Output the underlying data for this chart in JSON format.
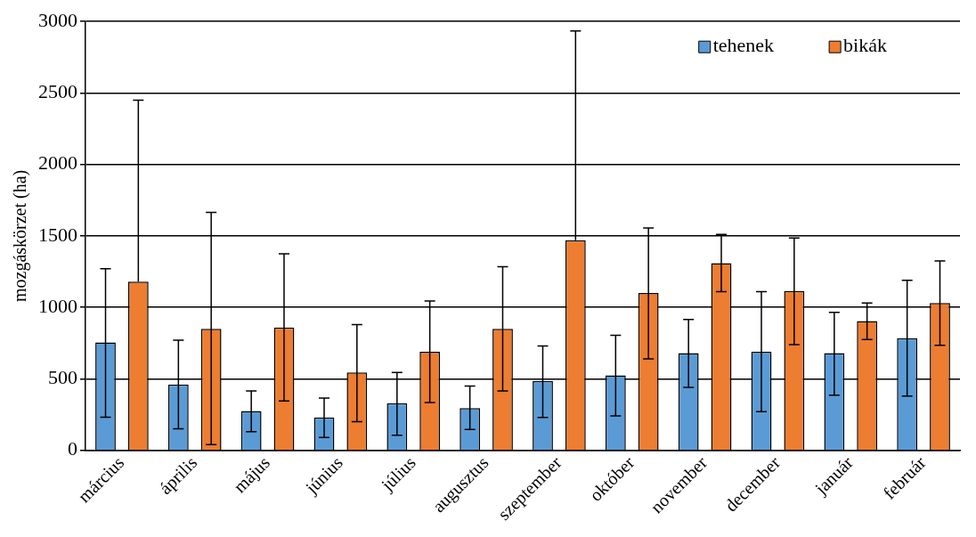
{
  "chart_data": {
    "type": "bar",
    "ylabel": "mozgáskörzet (ha)",
    "categories": [
      "március",
      "április",
      "május",
      "június",
      "július",
      "augusztus",
      "szeptember",
      "október",
      "november",
      "december",
      "január",
      "február"
    ],
    "series": [
      {
        "name": "tehenek",
        "color": "#5b9bd5",
        "values": [
          755,
          460,
          275,
          230,
          330,
          295,
          485,
          525,
          680,
          690,
          680,
          785
        ],
        "errors": [
          [
            232,
            1270
          ],
          [
            150,
            770
          ],
          [
            130,
            415
          ],
          [
            90,
            365
          ],
          [
            105,
            545
          ],
          [
            145,
            450
          ],
          [
            230,
            730
          ],
          [
            240,
            805
          ],
          [
            440,
            915
          ],
          [
            270,
            1110
          ],
          [
            385,
            965
          ],
          [
            380,
            1190
          ]
        ]
      },
      {
        "name": "bikák",
        "color": "#ed7d31",
        "values": [
          1180,
          850,
          860,
          545,
          690,
          850,
          1470,
          1100,
          1310,
          1115,
          905,
          1030
        ],
        "errors": [
          [
            1180,
            2450
          ],
          [
            40,
            1665
          ],
          [
            345,
            1375
          ],
          [
            200,
            880
          ],
          [
            335,
            1045
          ],
          [
            415,
            1285
          ],
          [
            1470,
            2935
          ],
          [
            640,
            1555
          ],
          [
            1110,
            1510
          ],
          [
            740,
            1485
          ],
          [
            775,
            1030
          ],
          [
            735,
            1325
          ]
        ]
      }
    ],
    "ylim": [
      0,
      3000
    ],
    "yticks": [
      0,
      500,
      1000,
      1500,
      2000,
      2500,
      3000
    ],
    "grid": "y",
    "legend": "top right"
  }
}
